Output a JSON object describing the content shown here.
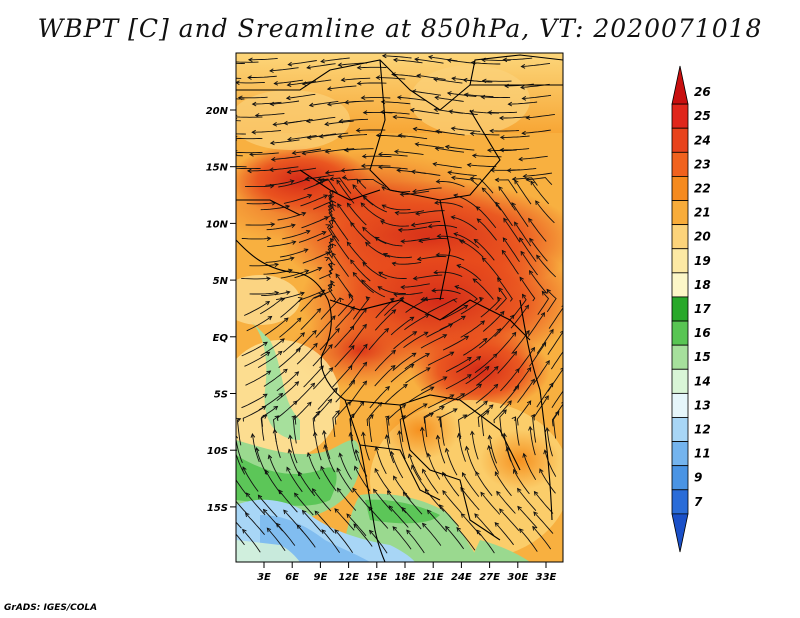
{
  "title": "WBPT [C] and Sreamline at 850hPa, VT: 2020071018",
  "footer": "GrADS: IGES/COLA",
  "map": {
    "lat_labels": [
      "20N",
      "15N",
      "10N",
      "5N",
      "EQ",
      "5S",
      "10S",
      "15S"
    ],
    "lon_labels": [
      "3E",
      "6E",
      "9E",
      "12E",
      "15E",
      "18E",
      "21E",
      "24E",
      "27E",
      "30E",
      "33E"
    ]
  },
  "colorbar": {
    "labels": [
      "26",
      "25",
      "24",
      "23",
      "22",
      "21",
      "20",
      "19",
      "18",
      "17",
      "16",
      "15",
      "14",
      "13",
      "12",
      "11",
      "9",
      "7"
    ],
    "colors": [
      "#c80f0f",
      "#e0261b",
      "#e8431c",
      "#f0621e",
      "#f58a1e",
      "#f8ac3a",
      "#fcd37a",
      "#fde9a4",
      "#fdf7c8",
      "#28a82a",
      "#58c553",
      "#a6e09c",
      "#d9f5d7",
      "#e6f6fb",
      "#a8d6f6",
      "#74b4ee",
      "#4a94e4",
      "#2a6cd8",
      "#1a50c8"
    ]
  }
}
